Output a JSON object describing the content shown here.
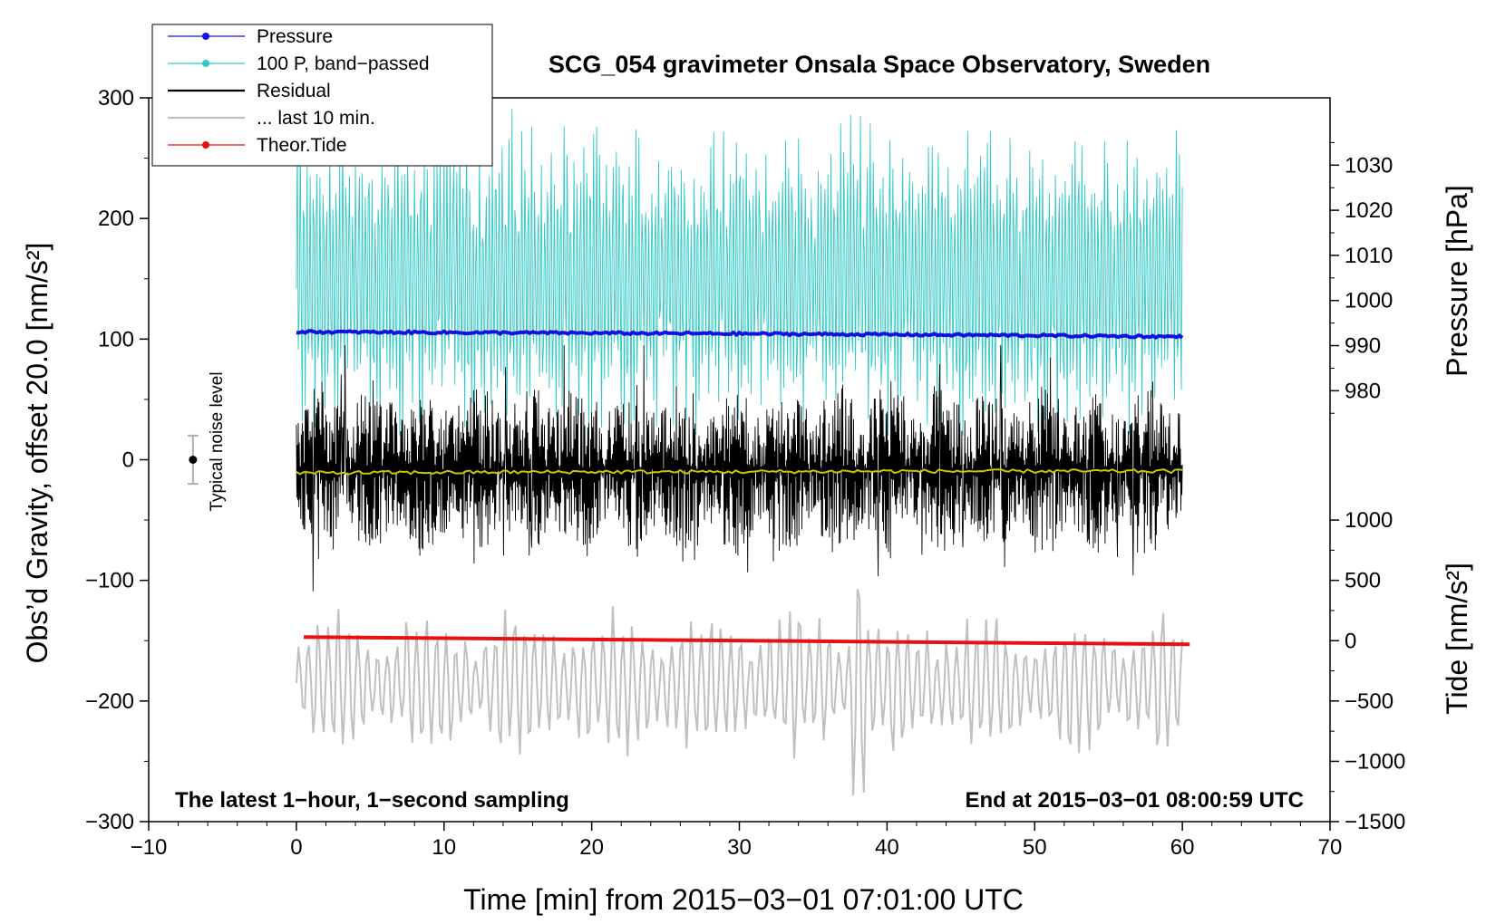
{
  "chart_data": {
    "type": "line",
    "title": "SCG_054 gravimeter Onsala Space Observatory, Sweden",
    "xlabel": "Time [min] from 2015−03−01 07:01:00 UTC",
    "ylabel_left": "Obs’d Gravity, offset 20.0 [nm/s²]",
    "ylabel_right_top": "Pressure [hPa]",
    "ylabel_right_bottom": "Tide [nm/s²]",
    "xlim": [
      -10,
      70
    ],
    "ylim": [
      -300,
      300
    ],
    "x_ticks": [
      {
        "value": -10,
        "label": "−10"
      },
      {
        "value": 0,
        "label": "0"
      },
      {
        "value": 10,
        "label": "10"
      },
      {
        "value": 20,
        "label": "20"
      },
      {
        "value": 30,
        "label": "30"
      },
      {
        "value": 40,
        "label": "40"
      },
      {
        "value": 50,
        "label": "50"
      },
      {
        "value": 60,
        "label": "60"
      },
      {
        "value": 70,
        "label": "70"
      }
    ],
    "y_ticks_left": [
      {
        "value": 300,
        "label": "300"
      },
      {
        "value": 200,
        "label": "200"
      },
      {
        "value": 100,
        "label": "100"
      },
      {
        "value": 0,
        "label": "0"
      },
      {
        "value": -100,
        "label": "−100"
      },
      {
        "value": -200,
        "label": "−200"
      },
      {
        "value": -300,
        "label": "−300"
      }
    ],
    "pressure_axis": {
      "ticks": [
        {
          "value": 1030,
          "label": "1030"
        },
        {
          "value": 1020,
          "label": "1020"
        },
        {
          "value": 1010,
          "label": "1010"
        },
        {
          "value": 1000,
          "label": "1000"
        },
        {
          "value": 990,
          "label": "990"
        },
        {
          "value": 980,
          "label": "980"
        }
      ],
      "gravity_at_990": 94.6,
      "gravity_per_hpa": 3.74
    },
    "tide_axis": {
      "ticks": [
        {
          "value": 1000,
          "label": "1000"
        },
        {
          "value": 500,
          "label": "500"
        },
        {
          "value": 0,
          "label": "0"
        },
        {
          "value": -500,
          "label": "−500"
        },
        {
          "value": -1000,
          "label": "−1000"
        },
        {
          "value": -1500,
          "label": "−1500"
        }
      ],
      "gravity_at_0": -150,
      "gravity_per_unit": 0.1
    },
    "legend": [
      {
        "label": "Pressure",
        "color": "#1010e0",
        "marker": "dot"
      },
      {
        "label": "100 P, band−passed",
        "color": "#30c8c8",
        "marker": "dot"
      },
      {
        "label": "Residual",
        "color": "#000000",
        "marker": "none"
      },
      {
        "label": "... last 10 min.",
        "color": "#c0c0c0",
        "marker": "none"
      },
      {
        "label": "Theor.Tide",
        "color": "#e81010",
        "marker": "dot"
      }
    ],
    "legend_position": "top-left",
    "series": [
      {
        "name": "Pressure",
        "color": "#1010e0",
        "x": [
          0,
          10,
          20,
          30,
          40,
          50,
          60
        ],
        "y": [
          106,
          105.5,
          105,
          104.5,
          103.8,
          103,
          102
        ]
      },
      {
        "name": "100 P, band−passed",
        "color": "#30c8c8",
        "x_range": [
          0,
          60
        ],
        "y_range": [
          20,
          300
        ],
        "center": 150,
        "amplitude": 130
      },
      {
        "name": "Residual",
        "color": "#000000",
        "x_range": [
          0,
          60
        ],
        "y_range": [
          -120,
          95
        ],
        "center": 0,
        "amplitude": 60
      },
      {
        "name": "Mean residual",
        "color": "#c8c800",
        "x": [
          0,
          10,
          20,
          30,
          40,
          50,
          60
        ],
        "y": [
          -11,
          -10.5,
          -10,
          -10,
          -9.5,
          -9.5,
          -9.5
        ]
      },
      {
        "name": "... last 10 min.",
        "color": "#c0c0c0",
        "x_range": [
          0,
          60
        ],
        "y_range": [
          -288,
          -105
        ],
        "center": -185,
        "amplitude": 55
      },
      {
        "name": "Theor.Tide",
        "color": "#e81010",
        "x": [
          0.5,
          60.5
        ],
        "y": [
          -147,
          -153
        ]
      }
    ],
    "noise_marker": {
      "label": "Typical noise level",
      "x": -7,
      "y": 0,
      "err": 20
    },
    "annotations": {
      "bottom_left": "The latest 1−hour, 1−second sampling",
      "bottom_right": "End at 2015−03−01 08:00:59 UTC"
    },
    "grid": false
  }
}
